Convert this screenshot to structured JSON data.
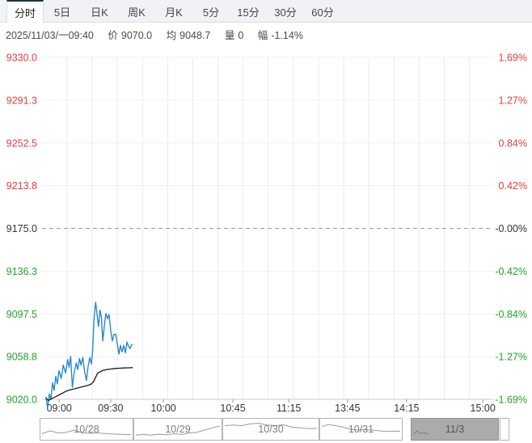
{
  "tabs": {
    "items": [
      {
        "name": "tab-intraday",
        "label": "分时",
        "selected": true
      },
      {
        "name": "tab-5day",
        "label": "5日",
        "selected": false
      },
      {
        "name": "tab-daily-k",
        "label": "日K",
        "selected": false
      },
      {
        "name": "tab-weekly-k",
        "label": "周K",
        "selected": false
      },
      {
        "name": "tab-monthly-k",
        "label": "月K",
        "selected": false
      },
      {
        "name": "tab-5min",
        "label": "5分",
        "selected": false
      },
      {
        "name": "tab-15min",
        "label": "15分",
        "selected": false
      },
      {
        "name": "tab-30min",
        "label": "30分",
        "selected": false
      },
      {
        "name": "tab-60min",
        "label": "60分",
        "selected": false
      }
    ]
  },
  "info_bar": {
    "datetime": "2025/11/03/一09:40",
    "price_label": "价",
    "price": "9070.0",
    "avg_label": "均",
    "avg": "9048.7",
    "volume_label": "量",
    "volume": "0",
    "change_label": "幅",
    "change": "-1.14%"
  },
  "colors": {
    "up_red": "#e23d3d",
    "down_green": "#1fa32a",
    "neutral": "#333333",
    "price_line": "#1e82cc",
    "avg_line": "#1a1a1a",
    "tab_accent": "#20334f",
    "nav_selected_fill": "#ababab",
    "spark_gray": "#9a9a9a"
  },
  "chart_data": {
    "type": "line",
    "title": "",
    "xlabel": "",
    "ylabel": "",
    "grid": true,
    "y_axis_left": {
      "labels": [
        "9330.0",
        "9291.3",
        "9252.5",
        "9213.8",
        "9175.0",
        "9136.3",
        "9097.5",
        "9058.8",
        "9020.0"
      ],
      "min": 9020,
      "max": 9330,
      "prev_close": 9175.0
    },
    "y_axis_right": {
      "labels": [
        "1.69%",
        "1.27%",
        "0.84%",
        "0.42%",
        "-0.00%",
        "-0.42%",
        "-0.84%",
        "-1.27%",
        "-1.69%"
      ]
    },
    "x_axis": {
      "labels": [
        "09:00",
        "09:30",
        "10:00",
        "10:45",
        "11:15",
        "13:45",
        "14:15",
        "15:00"
      ],
      "positions": [
        0.038,
        0.152,
        0.269,
        0.423,
        0.547,
        0.677,
        0.808,
        0.977
      ]
    },
    "series": [
      {
        "name": "price",
        "color_key": "price_line",
        "points": [
          [
            0,
            9022
          ],
          [
            0.7,
            9012
          ],
          [
            1.5,
            9025
          ],
          [
            2.2,
            9020
          ],
          [
            3,
            9035
          ],
          [
            3.7,
            9028
          ],
          [
            4.5,
            9041
          ],
          [
            5.2,
            9034
          ],
          [
            6,
            9046
          ],
          [
            7,
            9039
          ],
          [
            8,
            9051
          ],
          [
            9,
            9044
          ],
          [
            10,
            9056
          ],
          [
            10.7,
            9049
          ],
          [
            11.4,
            9059
          ],
          [
            12.2,
            9031
          ],
          [
            13,
            9044
          ],
          [
            14,
            9053
          ],
          [
            14.7,
            9047
          ],
          [
            15.5,
            9057
          ],
          [
            16.2,
            9051
          ],
          [
            17,
            9058
          ],
          [
            18,
            9044
          ],
          [
            18.7,
            9037
          ],
          [
            19.5,
            9050
          ],
          [
            20.3,
            9058
          ],
          [
            21,
            9052
          ],
          [
            21.6,
            9064
          ],
          [
            22.2,
            9092
          ],
          [
            23,
            9108
          ],
          [
            23.7,
            9096
          ],
          [
            24.3,
            9086
          ],
          [
            25,
            9101
          ],
          [
            25.7,
            9094
          ],
          [
            26.3,
            9073
          ],
          [
            27,
            9086
          ],
          [
            27.7,
            9098
          ],
          [
            28.5,
            9093
          ],
          [
            29.2,
            9097
          ],
          [
            30,
            9082
          ],
          [
            30.7,
            9073
          ],
          [
            31.5,
            9079
          ],
          [
            32.3,
            9079
          ],
          [
            33,
            9071
          ],
          [
            33.8,
            9061
          ],
          [
            34.5,
            9069
          ],
          [
            35.2,
            9063
          ],
          [
            36,
            9069
          ],
          [
            36.8,
            9062
          ],
          [
            37.5,
            9072
          ],
          [
            38.2,
            9068
          ],
          [
            39,
            9066
          ],
          [
            39.5,
            9069
          ],
          [
            40,
            9070
          ]
        ]
      },
      {
        "name": "average",
        "color_key": "avg_line",
        "points": [
          [
            0,
            9021
          ],
          [
            1,
            9019
          ],
          [
            2,
            9020
          ],
          [
            3,
            9021
          ],
          [
            4,
            9022
          ],
          [
            6,
            9024
          ],
          [
            8,
            9026
          ],
          [
            10,
            9028
          ],
          [
            12,
            9029
          ],
          [
            14,
            9030
          ],
          [
            16,
            9031
          ],
          [
            18,
            9032
          ],
          [
            20,
            9033
          ],
          [
            21,
            9034
          ],
          [
            22,
            9036
          ],
          [
            23,
            9040
          ],
          [
            24,
            9044
          ],
          [
            25,
            9045
          ],
          [
            26,
            9046
          ],
          [
            28,
            9047
          ],
          [
            30,
            9047.5
          ],
          [
            32,
            9048
          ],
          [
            34,
            9048.2
          ],
          [
            36,
            9048.4
          ],
          [
            38,
            9048.6
          ],
          [
            40,
            9048.7
          ]
        ]
      }
    ],
    "session_start": "09:00",
    "last_point_time": "09:40"
  },
  "navigator": {
    "segments": [
      {
        "name": "nav-segment-10-28",
        "label": "10/28",
        "selected": false,
        "spark_span": 1,
        "spark": [
          0.25,
          0.45,
          0.3,
          0.35,
          0.5,
          0.3,
          0.28,
          0.3,
          0.25,
          0.22,
          0.2,
          0.18
        ]
      },
      {
        "name": "nav-segment-10-29",
        "label": "10/29",
        "selected": false,
        "spark_span": 1,
        "spark": [
          0.15,
          0.2,
          0.15,
          0.22,
          0.18,
          0.25,
          0.2,
          0.3,
          0.35,
          0.5,
          0.65,
          0.78
        ]
      },
      {
        "name": "nav-segment-10-30",
        "label": "10/30",
        "selected": false,
        "spark_span": 1,
        "spark": [
          0.8,
          0.85,
          0.8,
          0.92,
          0.97,
          0.85,
          0.8,
          0.86,
          0.7,
          0.65,
          0.6,
          0.62
        ]
      },
      {
        "name": "nav-segment-10-31",
        "label": "10/31",
        "selected": false,
        "spark_span": 1,
        "spark": [
          0.75,
          0.88,
          0.8,
          0.7,
          0.55,
          0.5,
          0.53,
          0.5,
          0.45,
          0.4,
          0.43,
          0.4
        ]
      },
      {
        "name": "nav-segment-11-3",
        "label": "11/3",
        "selected": true,
        "spark_span": 0.18,
        "spark": [
          0.2,
          0.45,
          0.25,
          0.32,
          0.22
        ]
      }
    ]
  }
}
